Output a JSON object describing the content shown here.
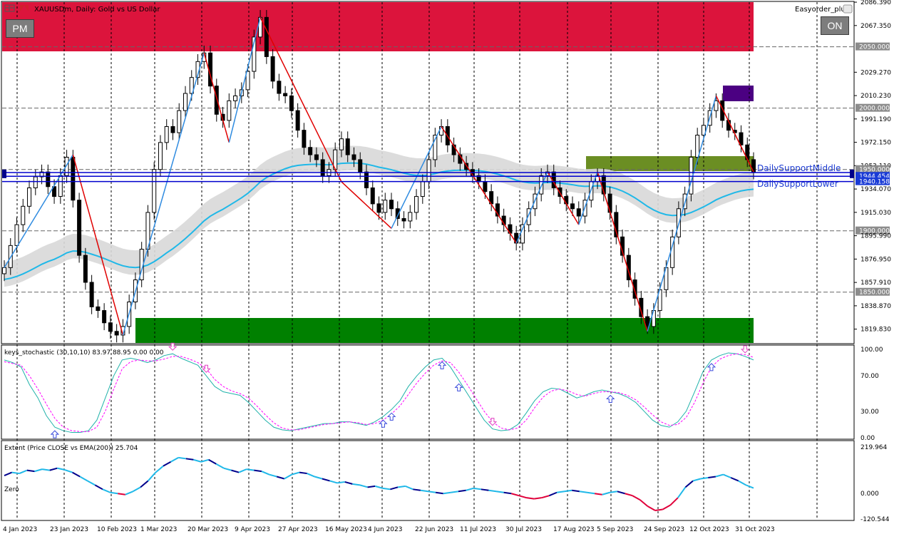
{
  "chart_title": "XAUUSDm, Daily: Gold vs US Dollar",
  "ea_label": "Easyorder_plus",
  "buttons": {
    "pm": "PM",
    "on": "ON"
  },
  "colors": {
    "bull_stroke": "#000000",
    "bear_fill": "#000000",
    "zigzag_up": "#2f8be0",
    "zigzag_down": "#e00000",
    "supply_zone": "#dc143c",
    "demand_zone": "#008000",
    "support_zone": "#6b8e23",
    "purple_box": "#4b0082",
    "level_line": "#0000cd",
    "ema_line": "#1fb8e8",
    "stoch_main": "#20b2aa",
    "stoch_signal": "#ff00ff",
    "extent_pos": "#1fb8e8",
    "extent_dark": "#00008b",
    "extent_neg": "#e0003a"
  },
  "chart_data": [
    {
      "type": "candlestick",
      "title": "XAUUSDm, Daily: Gold vs US Dollar",
      "price_axis": [
        "2086.390",
        "2067.350",
        "2050.000",
        "2029.270",
        "2010.230",
        "2000.000",
        "1991.190",
        "1972.150",
        "1953.110",
        "1950.000",
        "1944.454",
        "1940.158",
        "1934.070",
        "1915.030",
        "1900.000",
        "1895.990",
        "1876.950",
        "1857.910",
        "1850.000",
        "1838.870",
        "1819.830"
      ],
      "ylim": [
        1808,
        2087
      ],
      "date_axis": [
        "4 Jan 2023",
        "23 Jan 2023",
        "10 Feb 2023",
        "1 Mar 2023",
        "20 Mar 2023",
        "9 Apr 2023",
        "27 Apr 2023",
        "16 May 2023",
        "4 Jun 2023",
        "22 Jun 2023",
        "11 Jul 2023",
        "30 Jul 2023",
        "17 Aug 2023",
        "5 Sep 2023",
        "24 Sep 2023",
        "12 Oct 2023",
        "31 Oct 2023"
      ],
      "horizontal_levels": [
        {
          "price": 2050.0,
          "label": "2050.000",
          "style": "dash"
        },
        {
          "price": 2000.0,
          "label": "2000.000",
          "style": "dash"
        },
        {
          "price": 1950.0,
          "label": "1950.000",
          "style": "dash"
        },
        {
          "price": 1900.0,
          "label": "1900.000",
          "style": "dash"
        },
        {
          "price": 1850.0,
          "label": "1850.000",
          "style": "dash"
        }
      ],
      "support_labels": [
        "DailySupportMiddle",
        "DailySupportLower"
      ],
      "current_price": "1944.454",
      "close": [
        1870,
        1888,
        1905,
        1920,
        1935,
        1944,
        1948,
        1936,
        1928,
        1945,
        1960,
        1925,
        1880,
        1858,
        1838,
        1835,
        1825,
        1818,
        1815,
        1822,
        1842,
        1860,
        1885,
        1915,
        1950,
        1972,
        1985,
        1980,
        1998,
        2012,
        2025,
        2038,
        2045,
        2018,
        1995,
        1990,
        2006,
        2010,
        2015,
        2030,
        2058,
        2074,
        2042,
        2022,
        2012,
        2010,
        1998,
        1982,
        1968,
        1962,
        1958,
        1945,
        1950,
        1966,
        1975,
        1962,
        1958,
        1948,
        1935,
        1922,
        1915,
        1925,
        1918,
        1910,
        1908,
        1915,
        1928,
        1940,
        1958,
        1978,
        1985,
        1970,
        1962,
        1955,
        1950,
        1945,
        1940,
        1932,
        1922,
        1912,
        1905,
        1898,
        1890,
        1905,
        1918,
        1930,
        1945,
        1948,
        1935,
        1928,
        1922,
        1918,
        1912,
        1925,
        1940,
        1945,
        1930,
        1915,
        1895,
        1880,
        1860,
        1845,
        1830,
        1822,
        1835,
        1852,
        1870,
        1895,
        1918,
        1930,
        1960,
        1978,
        1986,
        1998,
        2006,
        1990,
        1982,
        1980,
        1970,
        1958,
        1948
      ]
    },
    {
      "type": "line",
      "title": "keys_stochastic (30,10,10) 83.97 88.95 0.00 0.00",
      "ylim": [
        0,
        100
      ],
      "ticks": [
        "100.00",
        "70.00",
        "30.00",
        "0.00"
      ],
      "series": [
        {
          "name": "main",
          "values": [
            88,
            85,
            80,
            60,
            45,
            25,
            12,
            8,
            6,
            6,
            8,
            20,
            45,
            70,
            88,
            90,
            88,
            85,
            88,
            93,
            95,
            90,
            86,
            82,
            70,
            58,
            52,
            50,
            48,
            40,
            30,
            20,
            12,
            9,
            8,
            10,
            12,
            14,
            16,
            16,
            18,
            18,
            16,
            14,
            18,
            24,
            32,
            42,
            58,
            70,
            80,
            88,
            90,
            80,
            65,
            50,
            35,
            20,
            10,
            8,
            9,
            15,
            28,
            42,
            52,
            56,
            55,
            50,
            45,
            48,
            52,
            54,
            52,
            50,
            46,
            40,
            30,
            20,
            14,
            12,
            18,
            30,
            52,
            75,
            88,
            93,
            96,
            95,
            92,
            88
          ]
        },
        {
          "name": "signal",
          "values": [
            86,
            84,
            82,
            70,
            55,
            38,
            22,
            12,
            8,
            7,
            7,
            12,
            30,
            55,
            78,
            86,
            88,
            87,
            87,
            89,
            92,
            92,
            89,
            85,
            78,
            66,
            58,
            53,
            50,
            45,
            36,
            26,
            17,
            11,
            9,
            9,
            11,
            13,
            15,
            16,
            17,
            18,
            17,
            15,
            16,
            20,
            27,
            36,
            49,
            62,
            73,
            82,
            87,
            85,
            74,
            60,
            45,
            30,
            18,
            11,
            9,
            11,
            20,
            34,
            46,
            53,
            55,
            53,
            49,
            47,
            50,
            52,
            52,
            51,
            48,
            43,
            35,
            26,
            18,
            14,
            15,
            23,
            40,
            62,
            80,
            89,
            93,
            95,
            94,
            91
          ]
        }
      ]
    },
    {
      "type": "line",
      "title": "Extent (Price CLOSE vs EMA(200)) 25.704",
      "ylim": [
        -120.544,
        219.964
      ],
      "ticks": [
        "219.964",
        "0.000",
        "-120.544"
      ],
      "zero_label": "Zero",
      "series": [
        {
          "name": "extent",
          "values": [
            85,
            100,
            95,
            110,
            105,
            115,
            110,
            120,
            112,
            100,
            80,
            60,
            40,
            20,
            5,
            0,
            -5,
            10,
            30,
            60,
            100,
            130,
            150,
            170,
            165,
            160,
            150,
            160,
            140,
            120,
            110,
            100,
            115,
            110,
            105,
            90,
            80,
            70,
            90,
            100,
            95,
            80,
            70,
            60,
            50,
            55,
            45,
            40,
            30,
            35,
            25,
            20,
            30,
            35,
            20,
            15,
            10,
            5,
            0,
            5,
            10,
            15,
            25,
            20,
            15,
            10,
            5,
            0,
            -10,
            -20,
            -25,
            -20,
            -10,
            5,
            10,
            15,
            10,
            5,
            0,
            -5,
            5,
            10,
            0,
            -10,
            -30,
            -60,
            -80,
            -75,
            -55,
            -20,
            30,
            60,
            70,
            75,
            80,
            90,
            75,
            60,
            40,
            26
          ]
        }
      ]
    }
  ]
}
